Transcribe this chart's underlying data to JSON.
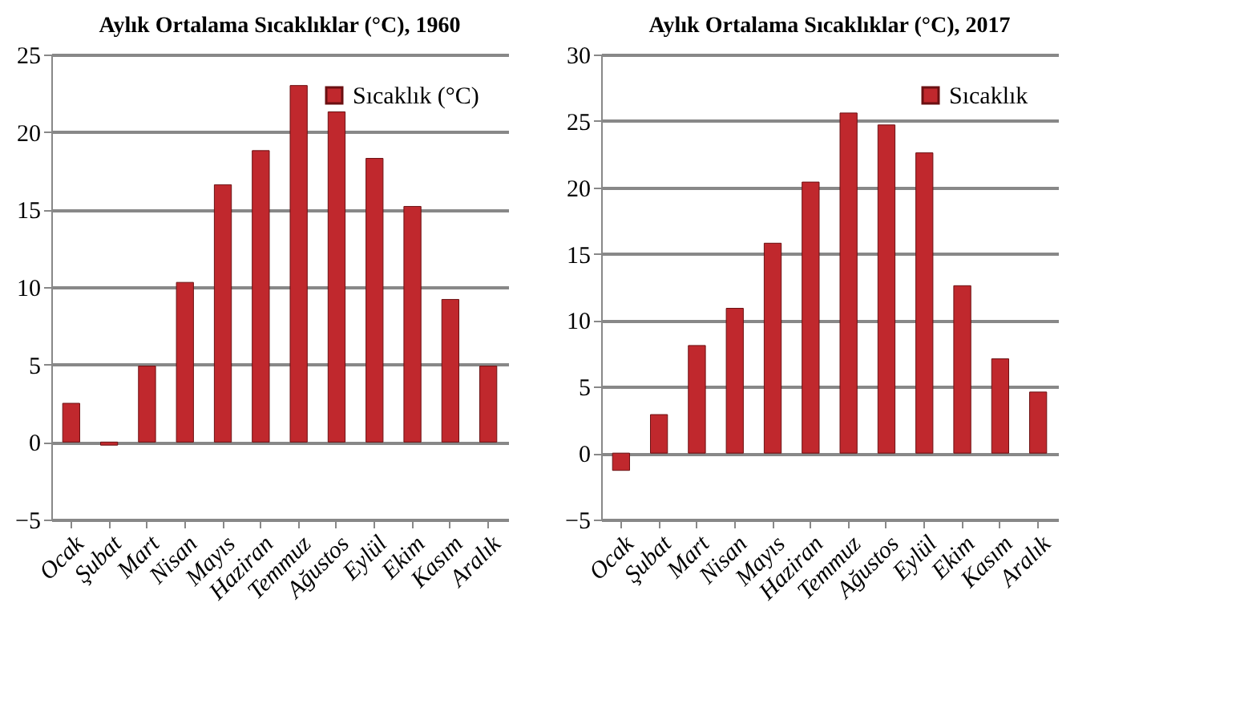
{
  "chart_data": [
    {
      "type": "bar",
      "title": "Aylık Ortalama Sıcaklıklar (°C), 1960",
      "categories": [
        "Ocak",
        "Şubat",
        "Mart",
        "Nisan",
        "Mayıs",
        "Haziran",
        "Temmuz",
        "Ağustos",
        "Eylül",
        "Ekim",
        "Kasım",
        "Aralık"
      ],
      "series": [
        {
          "name": "Sıcaklık (°C)",
          "color": "#c0282d",
          "values": [
            2.5,
            -0.2,
            4.9,
            10.3,
            16.6,
            18.8,
            23.0,
            21.3,
            18.3,
            15.2,
            9.2,
            4.9
          ]
        }
      ],
      "ylim": [
        -5,
        25
      ],
      "yticks": [
        -5,
        0,
        5,
        10,
        15,
        20,
        25
      ],
      "grid": "y",
      "legend": "top right"
    },
    {
      "type": "bar",
      "title": "Aylık Ortalama Sıcaklıklar (°C), 2017",
      "categories": [
        "Ocak",
        "Şubat",
        "Mart",
        "Nisan",
        "Mayıs",
        "Haziran",
        "Temmuz",
        "Ağustos",
        "Eylül",
        "Ekim",
        "Kasım",
        "Aralık"
      ],
      "series": [
        {
          "name": "Sıcaklık",
          "color": "#c0282d",
          "values": [
            -1.3,
            2.9,
            8.1,
            10.9,
            15.8,
            20.4,
            25.6,
            24.7,
            22.6,
            12.6,
            7.1,
            4.6
          ]
        }
      ],
      "ylim": [
        -5,
        30
      ],
      "yticks": [
        -5,
        0,
        5,
        10,
        15,
        20,
        25,
        30
      ],
      "grid": "y",
      "legend": "top right"
    }
  ]
}
